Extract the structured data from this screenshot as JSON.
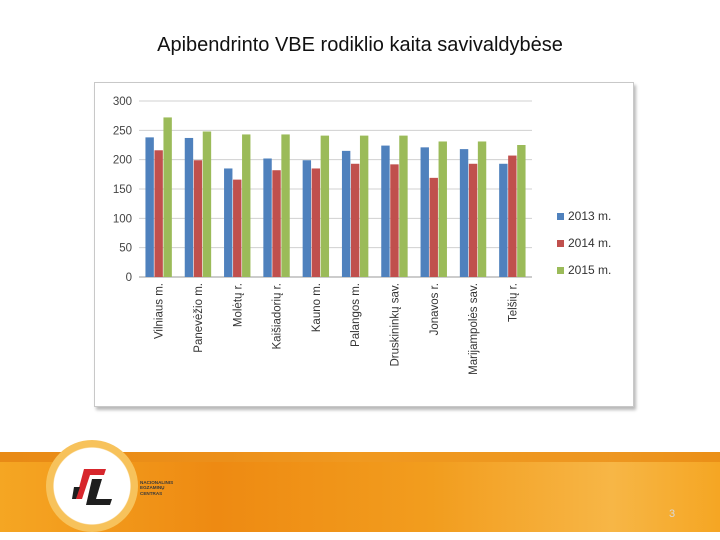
{
  "slide": {
    "title": "Apibendrinto VBE rodiklio kaita savivaldybėse",
    "logo_text": [
      "NACIONALINIS",
      "EGZAMINŲ",
      "CENTRAS"
    ],
    "page_number": "3"
  },
  "colors": {
    "2013": "#4f81bd",
    "2014": "#c0504d",
    "2015": "#9bbb59",
    "footer": "#f29d1e"
  },
  "chart_data": {
    "type": "bar",
    "title": "",
    "xlabel": "",
    "ylabel": "",
    "ylim": [
      0,
      300
    ],
    "yticks": [
      "0",
      "50",
      "100",
      "150",
      "200",
      "250",
      "300"
    ],
    "grid": true,
    "legend_position": "right",
    "categories": [
      "Vilniaus m.",
      "Panevėžio m.",
      "Molėtų r.",
      "Kaišiadorių r.",
      "Kauno m.",
      "Palangos m.",
      "Druskininkų sav.",
      "Jonavos r.",
      "Marijampolės sav.",
      "Telšių r."
    ],
    "series": [
      {
        "name": "2013 m.",
        "values": [
          238,
          237,
          185,
          202,
          199,
          215,
          224,
          221,
          218,
          193
        ]
      },
      {
        "name": "2014 m.",
        "values": [
          216,
          199,
          166,
          182,
          185,
          193,
          192,
          169,
          193,
          207
        ]
      },
      {
        "name": "2015 m.",
        "values": [
          272,
          248,
          243,
          243,
          241,
          241,
          241,
          231,
          231,
          225
        ]
      }
    ]
  }
}
